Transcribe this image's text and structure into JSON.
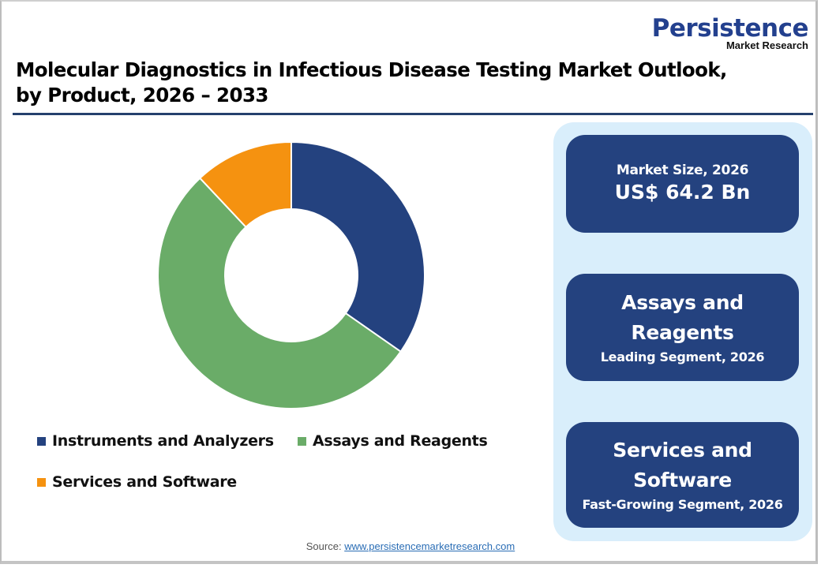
{
  "logo": {
    "name": "Persistence",
    "tagline": "Market Research"
  },
  "title": {
    "line1": "Molecular Diagnostics in Infectious Disease Testing Market Outlook,",
    "line2": "by Product, 2026 – 2033"
  },
  "chart_data": {
    "type": "pie",
    "subtype": "donut",
    "title": "Molecular Diagnostics in Infectious Disease Testing Market Outlook, by Product, 2026 – 2033",
    "categories": [
      "Instruments and Analyzers",
      "Assays and Reagents",
      "Services and Software"
    ],
    "values": [
      34.7,
      53.3,
      12.0
    ],
    "unit": "% share (estimated from slice angles)",
    "colors": [
      "#24427f",
      "#6aac68",
      "#f59210"
    ],
    "start_angle_deg": 0,
    "direction": "clockwise",
    "legend_position": "bottom"
  },
  "legend": [
    {
      "label": "Instruments and Analyzers",
      "color": "#24427f"
    },
    {
      "label": "Assays and Reagents",
      "color": "#6aac68"
    },
    {
      "label": "Services and Software",
      "color": "#f59210"
    }
  ],
  "stats": {
    "market_size": {
      "label": "Market Size, 2026",
      "value": "US$ 64.2 Bn"
    },
    "leading": {
      "title": "Assays and Reagents",
      "subtitle": "Leading Segment, 2026"
    },
    "fastest": {
      "title": "Services and Software",
      "subtitle": "Fast-Growing Segment, 2026"
    }
  },
  "source": {
    "label": "Source: ",
    "link_text": "www.persistencemarketresearch.com"
  }
}
